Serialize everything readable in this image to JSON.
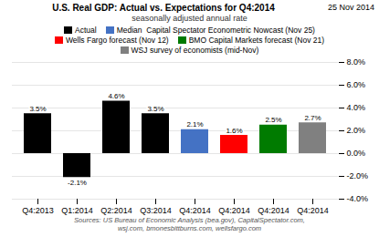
{
  "chart_data": {
    "type": "bar",
    "title": "U.S. Real GDP: Actual vs. Expectations for Q4:2014",
    "subtitle": "seasonally adjusted annual rate",
    "annotations": [
      "25 Nov 2014",
      "Sources: US Bureau of Economic Analysis (bea.gov), CapitalSpectator.com,\nwsj.com, bmonesbittburns.com, wellsfargo.com"
    ],
    "categories": [
      "Q4:2013",
      "Q1:2014",
      "Q2:2014",
      "Q3:2014",
      "Q4:2014",
      "Q4:2014",
      "Q4:2014",
      "Q4:2014"
    ],
    "series": [
      {
        "name": "Actual",
        "color": "#000000",
        "values": [
          3.5,
          -2.1,
          4.6,
          3.5,
          null,
          null,
          null,
          null
        ],
        "value_labels": [
          "3.5%",
          "-2.1%",
          "4.6%",
          "3.5%",
          null,
          null,
          null,
          null
        ]
      },
      {
        "name": "Median  Capital Spectator Econometric Nowcast (Nov 25)",
        "color": "#4472C4",
        "values": [
          null,
          null,
          null,
          null,
          2.1,
          null,
          null,
          null
        ],
        "value_labels": [
          null,
          null,
          null,
          null,
          "2.1%",
          null,
          null,
          null
        ]
      },
      {
        "name": "Wells Fargo forecast (Nov 12)",
        "color": "#FF0000",
        "values": [
          null,
          null,
          null,
          null,
          null,
          1.6,
          null,
          null
        ],
        "value_labels": [
          null,
          null,
          null,
          null,
          null,
          "1.6%",
          null,
          null
        ]
      },
      {
        "name": "BMO Capital Markets forecast (Nov 21)",
        "color": "#007B00",
        "values": [
          null,
          null,
          null,
          null,
          null,
          null,
          2.5,
          null
        ],
        "value_labels": [
          null,
          null,
          null,
          null,
          null,
          null,
          "2.5%",
          null
        ]
      },
      {
        "name": "WSJ survey of economists (mid-Nov)",
        "color": "#808080",
        "values": [
          null,
          null,
          null,
          null,
          null,
          null,
          null,
          2.7
        ],
        "value_labels": [
          null,
          null,
          null,
          null,
          null,
          null,
          null,
          "2.7%"
        ]
      }
    ],
    "ylim": [
      -4.0,
      8.0
    ],
    "yticks": [
      {
        "value": -4.0,
        "label": "-4.0%"
      },
      {
        "value": -2.0,
        "label": "-2.0%"
      },
      {
        "value": 0.0,
        "label": "0.0%"
      },
      {
        "value": 2.0,
        "label": "2.0%"
      },
      {
        "value": 4.0,
        "label": "4.0%"
      },
      {
        "value": 6.0,
        "label": "6.0%"
      },
      {
        "value": 8.0,
        "label": "8.0%"
      }
    ],
    "grid": true,
    "legend": "top",
    "data_labels": true
  }
}
